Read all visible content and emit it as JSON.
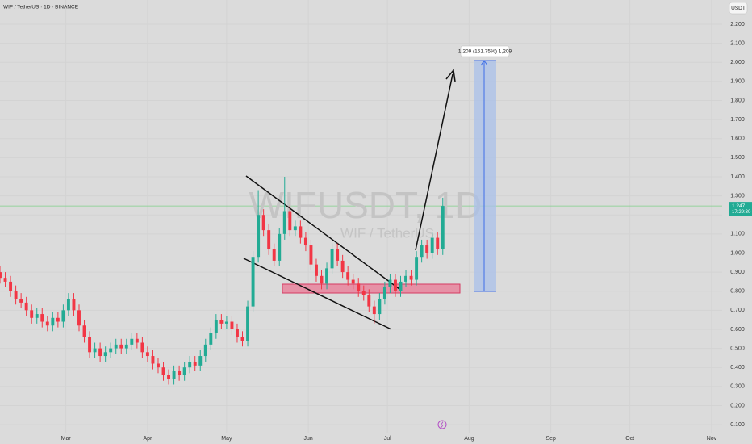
{
  "chart_data": {
    "type": "candlestick",
    "title": "WIF / TetherUS · 1D · BINANCE",
    "watermark": "WIFUSDT, 1D",
    "watermark_subtitle": "WIF / TetherUS",
    "currency": "USDT",
    "annotation": "1.209 (151.75%) 1,209",
    "countdown": "17:29:30",
    "up_color": "#22ab94",
    "down_color": "#f23645",
    "grid": true,
    "x": [
      4,
      6,
      8,
      10,
      12,
      14,
      16,
      18,
      20,
      22,
      24,
      26,
      28,
      30,
      32,
      34,
      36,
      38,
      40,
      42,
      44,
      46,
      48,
      50,
      52,
      54,
      56,
      58,
      60,
      62,
      64,
      66,
      68,
      70,
      72,
      74,
      76,
      78,
      80,
      82,
      84,
      86,
      88,
      90,
      92,
      94,
      96,
      98,
      100,
      102,
      104,
      106,
      108,
      110,
      112,
      114,
      116,
      118,
      120,
      122,
      124,
      126,
      128,
      130,
      132,
      134,
      136,
      138,
      140,
      142,
      144,
      146,
      148,
      150,
      152,
      154,
      156,
      158,
      160,
      162,
      164,
      166,
      168,
      170,
      172
    ],
    "ohlc": [
      [
        0.9,
        0.93,
        0.84,
        0.87
      ],
      [
        0.87,
        0.9,
        0.82,
        0.85
      ],
      [
        0.85,
        0.88,
        0.77,
        0.8
      ],
      [
        0.8,
        0.83,
        0.73,
        0.76
      ],
      [
        0.76,
        0.79,
        0.71,
        0.74
      ],
      [
        0.74,
        0.77,
        0.67,
        0.7
      ],
      [
        0.7,
        0.73,
        0.63,
        0.66
      ],
      [
        0.66,
        0.71,
        0.63,
        0.68
      ],
      [
        0.68,
        0.71,
        0.61,
        0.64
      ],
      [
        0.64,
        0.67,
        0.59,
        0.62
      ],
      [
        0.62,
        0.69,
        0.59,
        0.66
      ],
      [
        0.66,
        0.69,
        0.61,
        0.64
      ],
      [
        0.64,
        0.73,
        0.61,
        0.7
      ],
      [
        0.7,
        0.79,
        0.67,
        0.76
      ],
      [
        0.76,
        0.79,
        0.67,
        0.7
      ],
      [
        0.7,
        0.73,
        0.59,
        0.62
      ],
      [
        0.62,
        0.65,
        0.53,
        0.56
      ],
      [
        0.56,
        0.59,
        0.45,
        0.48
      ],
      [
        0.48,
        0.53,
        0.45,
        0.5
      ],
      [
        0.5,
        0.53,
        0.43,
        0.46
      ],
      [
        0.46,
        0.51,
        0.43,
        0.48
      ],
      [
        0.48,
        0.53,
        0.45,
        0.5
      ],
      [
        0.5,
        0.55,
        0.47,
        0.52
      ],
      [
        0.52,
        0.55,
        0.47,
        0.5
      ],
      [
        0.5,
        0.55,
        0.47,
        0.52
      ],
      [
        0.52,
        0.58,
        0.49,
        0.55
      ],
      [
        0.55,
        0.58,
        0.5,
        0.53
      ],
      [
        0.53,
        0.56,
        0.45,
        0.48
      ],
      [
        0.48,
        0.51,
        0.43,
        0.46
      ],
      [
        0.46,
        0.49,
        0.39,
        0.42
      ],
      [
        0.42,
        0.45,
        0.37,
        0.4
      ],
      [
        0.4,
        0.43,
        0.33,
        0.36
      ],
      [
        0.36,
        0.39,
        0.31,
        0.34
      ],
      [
        0.34,
        0.41,
        0.31,
        0.38
      ],
      [
        0.38,
        0.41,
        0.33,
        0.36
      ],
      [
        0.36,
        0.43,
        0.33,
        0.4
      ],
      [
        0.4,
        0.46,
        0.37,
        0.43
      ],
      [
        0.43,
        0.46,
        0.38,
        0.41
      ],
      [
        0.41,
        0.49,
        0.38,
        0.46
      ],
      [
        0.46,
        0.55,
        0.43,
        0.52
      ],
      [
        0.52,
        0.61,
        0.49,
        0.58
      ],
      [
        0.58,
        0.68,
        0.55,
        0.65
      ],
      [
        0.65,
        0.68,
        0.6,
        0.63
      ],
      [
        0.63,
        0.67,
        0.6,
        0.64
      ],
      [
        0.64,
        0.67,
        0.57,
        0.6
      ],
      [
        0.6,
        0.63,
        0.53,
        0.56
      ],
      [
        0.56,
        0.59,
        0.51,
        0.54
      ],
      [
        0.54,
        0.75,
        0.51,
        0.72
      ],
      [
        0.72,
        1.01,
        0.69,
        0.98
      ],
      [
        0.98,
        1.33,
        0.95,
        1.2
      ],
      [
        1.2,
        1.23,
        1.09,
        1.12
      ],
      [
        1.12,
        1.15,
        0.99,
        1.02
      ],
      [
        1.02,
        1.05,
        0.93,
        0.96
      ],
      [
        0.96,
        1.13,
        0.93,
        1.1
      ],
      [
        1.1,
        1.4,
        1.07,
        1.22
      ],
      [
        1.22,
        1.25,
        1.09,
        1.12
      ],
      [
        1.12,
        1.17,
        1.09,
        1.14
      ],
      [
        1.14,
        1.17,
        1.05,
        1.08
      ],
      [
        1.08,
        1.11,
        1.01,
        1.04
      ],
      [
        1.04,
        1.07,
        0.91,
        0.94
      ],
      [
        0.94,
        0.97,
        0.85,
        0.88
      ],
      [
        0.88,
        0.91,
        0.81,
        0.84
      ],
      [
        0.84,
        0.95,
        0.81,
        0.92
      ],
      [
        0.92,
        1.05,
        0.89,
        1.02
      ],
      [
        1.02,
        1.05,
        0.93,
        0.96
      ],
      [
        0.96,
        0.99,
        0.87,
        0.9
      ],
      [
        0.9,
        0.93,
        0.83,
        0.86
      ],
      [
        0.86,
        0.89,
        0.81,
        0.84
      ],
      [
        0.84,
        0.87,
        0.77,
        0.8
      ],
      [
        0.8,
        0.83,
        0.75,
        0.78
      ],
      [
        0.78,
        0.81,
        0.69,
        0.72
      ],
      [
        0.72,
        0.75,
        0.63,
        0.68
      ],
      [
        0.68,
        0.79,
        0.65,
        0.76
      ],
      [
        0.76,
        0.85,
        0.73,
        0.82
      ],
      [
        0.82,
        0.89,
        0.79,
        0.86
      ],
      [
        0.86,
        0.89,
        0.77,
        0.8
      ],
      [
        0.8,
        0.88,
        0.77,
        0.85
      ],
      [
        0.85,
        0.91,
        0.82,
        0.88
      ],
      [
        0.88,
        0.91,
        0.83,
        0.86
      ],
      [
        0.86,
        1.01,
        0.83,
        0.98
      ],
      [
        0.98,
        1.07,
        0.95,
        1.04
      ],
      [
        1.04,
        1.07,
        0.97,
        1.0
      ],
      [
        1.0,
        1.11,
        0.97,
        1.08
      ],
      [
        1.08,
        1.11,
        0.99,
        1.02
      ],
      [
        1.02,
        1.29,
        0.99,
        1.247
      ]
    ],
    "xlim": [
      4,
      278
    ],
    "xticks": [
      {
        "value": 29,
        "label": "Mar"
      },
      {
        "value": 60,
        "label": "Apr"
      },
      {
        "value": 90,
        "label": "May"
      },
      {
        "value": 121,
        "label": "Jun"
      },
      {
        "value": 151,
        "label": "Jul"
      },
      {
        "value": 182,
        "label": "Aug"
      },
      {
        "value": 213,
        "label": "Sep"
      },
      {
        "value": 243,
        "label": "Oct"
      },
      {
        "value": 274,
        "label": "Nov"
      }
    ],
    "ylim": [
      0.058,
      2.327
    ],
    "yticks": [
      {
        "value": 0.1,
        "label": "0.100"
      },
      {
        "value": 0.2,
        "label": "0.200"
      },
      {
        "value": 0.3,
        "label": "0.300"
      },
      {
        "value": 0.4,
        "label": "0.400"
      },
      {
        "value": 0.5,
        "label": "0.500"
      },
      {
        "value": 0.6,
        "label": "0.600"
      },
      {
        "value": 0.7,
        "label": "0.700"
      },
      {
        "value": 0.8,
        "label": "0.800"
      },
      {
        "value": 0.9,
        "label": "0.900"
      },
      {
        "value": 1.0,
        "label": "1.000"
      },
      {
        "value": 1.1,
        "label": "1.100"
      },
      {
        "value": 1.2,
        "label": "1.200"
      },
      {
        "value": 1.3,
        "label": "1.300"
      },
      {
        "value": 1.4,
        "label": "1.400"
      },
      {
        "value": 1.5,
        "label": "1.500"
      },
      {
        "value": 1.6,
        "label": "1.600"
      },
      {
        "value": 1.7,
        "label": "1.700"
      },
      {
        "value": 1.8,
        "label": "1.800"
      },
      {
        "value": 1.9,
        "label": "1.900"
      },
      {
        "value": 2.0,
        "label": "2.000"
      },
      {
        "value": 2.1,
        "label": "2.100"
      },
      {
        "value": 2.2,
        "label": "2.200"
      }
    ]
  }
}
